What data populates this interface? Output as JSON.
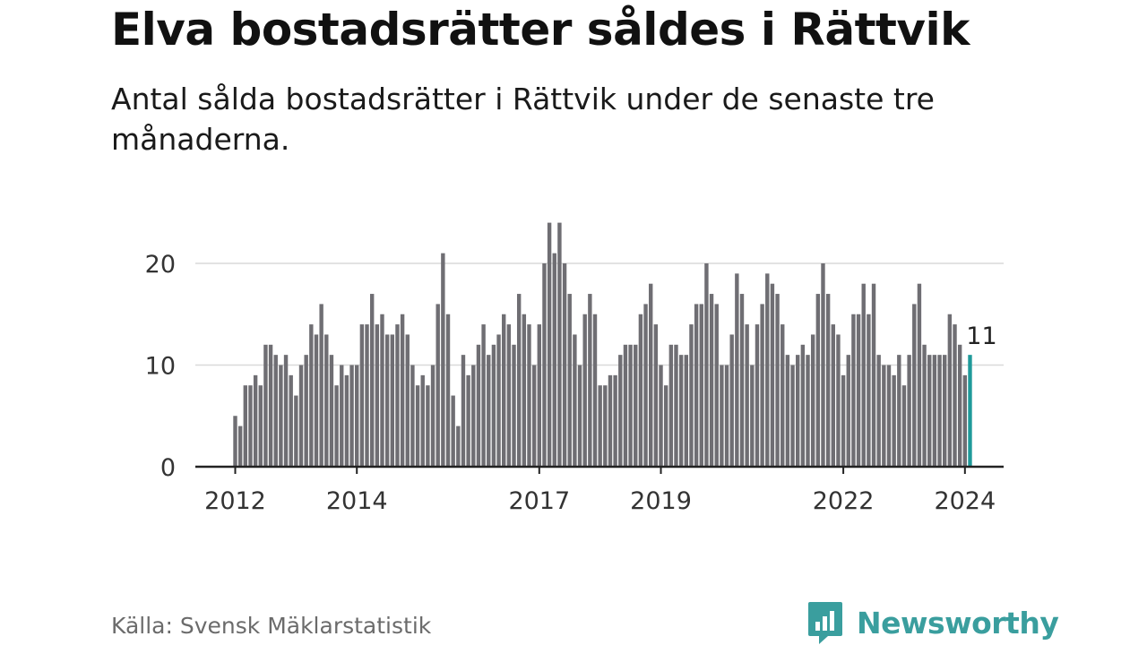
{
  "title": "Elva bostadsrätter såldes i Rättvik",
  "subtitle": "Antal sålda bostadsrätter i Rättvik under de senaste tre månaderna.",
  "source": "Källa: Svensk Mäklarstatistik",
  "brand": {
    "name": "Newsworthy",
    "logo": "newsworthy-logo-icon"
  },
  "colors": {
    "bar": "#6f6e73",
    "highlight": "#1f9a9a",
    "grid": "#d9d9d9",
    "axis": "#222222",
    "brand": "#3a9e9e"
  },
  "chart_data": {
    "type": "bar",
    "start_month": "2012-01",
    "values": [
      5,
      4,
      8,
      8,
      9,
      8,
      12,
      12,
      11,
      10,
      11,
      9,
      7,
      10,
      11,
      14,
      13,
      16,
      13,
      11,
      8,
      10,
      9,
      10,
      10,
      14,
      14,
      17,
      14,
      15,
      13,
      13,
      14,
      15,
      13,
      10,
      8,
      9,
      8,
      10,
      16,
      21,
      15,
      7,
      4,
      11,
      9,
      10,
      12,
      14,
      11,
      12,
      13,
      15,
      14,
      12,
      17,
      15,
      14,
      10,
      14,
      20,
      24,
      21,
      24,
      20,
      17,
      13,
      10,
      15,
      17,
      15,
      8,
      8,
      9,
      9,
      11,
      12,
      12,
      12,
      15,
      16,
      18,
      14,
      10,
      8,
      12,
      12,
      11,
      11,
      14,
      16,
      16,
      20,
      17,
      16,
      10,
      10,
      13,
      19,
      17,
      14,
      10,
      14,
      16,
      19,
      18,
      17,
      14,
      11,
      10,
      11,
      12,
      11,
      13,
      17,
      20,
      17,
      14,
      13,
      9,
      11,
      15,
      15,
      18,
      15,
      18,
      11,
      10,
      10,
      9,
      11,
      8,
      11,
      16,
      18,
      12,
      11,
      11,
      11,
      11,
      15,
      14,
      12,
      9,
      11
    ],
    "highlight_label": "11",
    "x_ticks": [
      {
        "label": "2012",
        "month_index": 0
      },
      {
        "label": "2014",
        "month_index": 24
      },
      {
        "label": "2017",
        "month_index": 60
      },
      {
        "label": "2019",
        "month_index": 84
      },
      {
        "label": "2022",
        "month_index": 120
      },
      {
        "label": "2024",
        "month_index": 144
      }
    ],
    "y_ticks": [
      0,
      10,
      20
    ],
    "ylim": [
      0,
      25
    ],
    "xlabel": "",
    "ylabel": "",
    "grid": true
  }
}
